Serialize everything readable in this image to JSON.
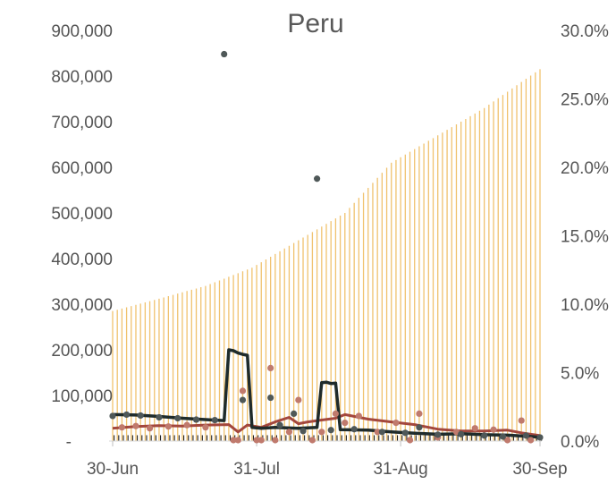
{
  "chart_data": {
    "type": "bar",
    "title": "Peru",
    "xlabel": "",
    "ylabel": "",
    "x_ticks": [
      "30-Jun",
      "31-Jul",
      "31-Aug",
      "30-Sep"
    ],
    "x_tick_days": [
      0,
      31,
      62,
      92
    ],
    "y_left_ticks": [
      "-",
      "100,000",
      "200,000",
      "300,000",
      "400,000",
      "500,000",
      "600,000",
      "700,000",
      "800,000",
      "900,000"
    ],
    "y_left_range": [
      0,
      900000
    ],
    "y_right_ticks": [
      "0.0%",
      "5.0%",
      "10.0%",
      "15.0%",
      "20.0%",
      "25.0%",
      "30.0%"
    ],
    "y_right_range": [
      0,
      30
    ],
    "colors": {
      "cumulative_bars": "#f0c26e",
      "daily_bars": "#222222",
      "black_line": "#1f2b2b",
      "red_line": "#a3473d",
      "black_points": "#4f5858",
      "red_points": "#c07a6d"
    },
    "series": [
      {
        "kind": "cumulative_bars",
        "axis": "left",
        "day_values": [
          [
            0,
            285000
          ],
          [
            10,
            312000
          ],
          [
            20,
            340000
          ],
          [
            30,
            380000
          ],
          [
            40,
            440000
          ],
          [
            50,
            500000
          ],
          [
            60,
            610000
          ],
          [
            70,
            670000
          ],
          [
            80,
            730000
          ],
          [
            87,
            780000
          ],
          [
            92,
            815000
          ]
        ]
      },
      {
        "kind": "black_line",
        "axis": "left",
        "day_values": [
          [
            0,
            58000
          ],
          [
            5,
            57000
          ],
          [
            10,
            54000
          ],
          [
            15,
            50000
          ],
          [
            20,
            47000
          ],
          [
            24,
            45000
          ],
          [
            25,
            200000
          ],
          [
            26,
            198000
          ],
          [
            27,
            193000
          ],
          [
            28,
            190000
          ],
          [
            29,
            188000
          ],
          [
            30,
            30000
          ],
          [
            32,
            28000
          ],
          [
            35,
            30000
          ],
          [
            40,
            28000
          ],
          [
            44,
            30000
          ],
          [
            45,
            128000
          ],
          [
            46,
            129000
          ],
          [
            47,
            126000
          ],
          [
            48,
            127000
          ],
          [
            49,
            25000
          ],
          [
            55,
            24000
          ],
          [
            60,
            20000
          ],
          [
            65,
            17000
          ],
          [
            70,
            15000
          ],
          [
            75,
            16000
          ],
          [
            80,
            14000
          ],
          [
            85,
            13000
          ],
          [
            90,
            10000
          ],
          [
            92,
            8000
          ]
        ]
      },
      {
        "kind": "red_line",
        "axis": "left",
        "day_values": [
          [
            0,
            28000
          ],
          [
            5,
            32000
          ],
          [
            10,
            34000
          ],
          [
            15,
            33000
          ],
          [
            20,
            35000
          ],
          [
            25,
            36000
          ],
          [
            27,
            20000
          ],
          [
            29,
            35000
          ],
          [
            32,
            30000
          ],
          [
            35,
            42000
          ],
          [
            38,
            52000
          ],
          [
            40,
            38000
          ],
          [
            42,
            42000
          ],
          [
            45,
            46000
          ],
          [
            48,
            50000
          ],
          [
            50,
            58000
          ],
          [
            55,
            48000
          ],
          [
            60,
            42000
          ],
          [
            65,
            36000
          ],
          [
            70,
            26000
          ],
          [
            75,
            22000
          ],
          [
            80,
            22000
          ],
          [
            85,
            24000
          ],
          [
            88,
            18000
          ],
          [
            92,
            12000
          ]
        ]
      },
      {
        "kind": "black_points",
        "axis": "left",
        "points": [
          [
            0,
            55000
          ],
          [
            3,
            58000
          ],
          [
            6,
            56000
          ],
          [
            10,
            52000
          ],
          [
            14,
            50000
          ],
          [
            18,
            47000
          ],
          [
            22,
            46000
          ],
          [
            24,
            848000
          ],
          [
            28,
            90000
          ],
          [
            34,
            95000
          ],
          [
            36,
            35000
          ],
          [
            39,
            60000
          ],
          [
            41,
            22000
          ],
          [
            44,
            575000
          ],
          [
            47,
            24000
          ],
          [
            52,
            26000
          ],
          [
            58,
            20000
          ],
          [
            63,
            18000
          ],
          [
            66,
            30000
          ],
          [
            70,
            14000
          ],
          [
            75,
            15000
          ],
          [
            80,
            12000
          ],
          [
            84,
            10000
          ],
          [
            89,
            12000
          ],
          [
            92,
            8000
          ]
        ]
      },
      {
        "kind": "red_points",
        "axis": "left",
        "points": [
          [
            2,
            30000
          ],
          [
            5,
            33000
          ],
          [
            8,
            28000
          ],
          [
            12,
            32000
          ],
          [
            16,
            35000
          ],
          [
            20,
            30000
          ],
          [
            26,
            2000
          ],
          [
            27,
            2000
          ],
          [
            28,
            110000
          ],
          [
            31,
            2000
          ],
          [
            32,
            2000
          ],
          [
            34,
            160000
          ],
          [
            35,
            2000
          ],
          [
            38,
            20000
          ],
          [
            40,
            90000
          ],
          [
            43,
            2000
          ],
          [
            45,
            20000
          ],
          [
            48,
            60000
          ],
          [
            50,
            40000
          ],
          [
            53,
            55000
          ],
          [
            57,
            20000
          ],
          [
            61,
            40000
          ],
          [
            64,
            2000
          ],
          [
            66,
            60000
          ],
          [
            70,
            8000
          ],
          [
            74,
            20000
          ],
          [
            78,
            28000
          ],
          [
            82,
            25000
          ],
          [
            85,
            2000
          ],
          [
            88,
            45000
          ],
          [
            90,
            2000
          ]
        ]
      },
      {
        "kind": "daily_bars",
        "axis": "left",
        "constant_value": 5000
      }
    ]
  }
}
